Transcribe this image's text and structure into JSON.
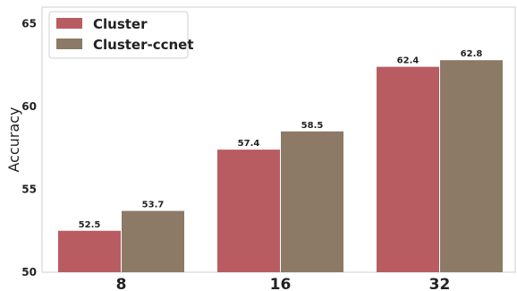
{
  "chart_data": {
    "type": "bar",
    "categories": [
      "8",
      "16",
      "32"
    ],
    "series": [
      {
        "name": "Cluster",
        "color": "#b85c62",
        "values": [
          52.5,
          57.4,
          62.4
        ]
      },
      {
        "name": "Cluster-ccnet",
        "color": "#8c7a66",
        "values": [
          53.7,
          58.5,
          62.8
        ]
      }
    ],
    "xlabel": "",
    "ylabel": "Accuracy",
    "ylim": [
      50,
      66
    ],
    "yticks": [
      50,
      55,
      60,
      65
    ],
    "grid": false,
    "legend_position": "top-left",
    "data_labels": true
  }
}
